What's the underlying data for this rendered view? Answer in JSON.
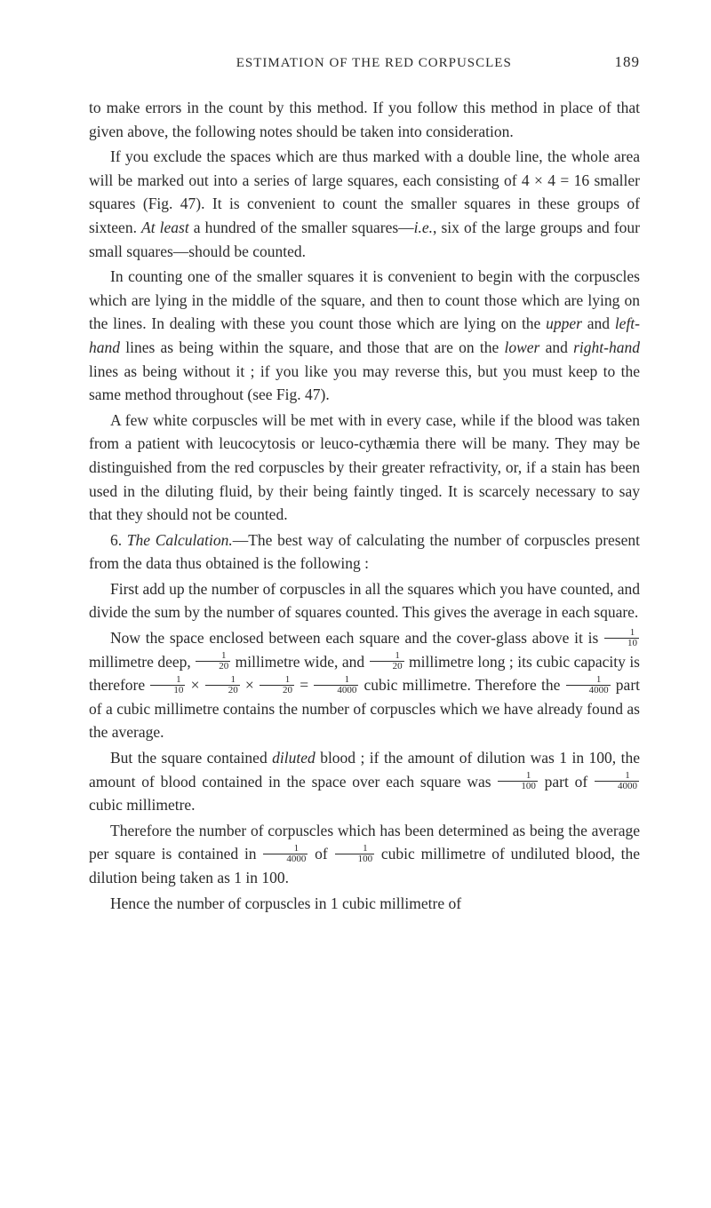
{
  "header": {
    "title": "ESTIMATION OF THE RED CORPUSCLES",
    "pageNumber": "189"
  },
  "paragraphs": {
    "p1": "to make errors in the count by this method. If you follow this method in place of that given above, the following notes should be taken into consideration.",
    "p2_a": "If you exclude the spaces which are thus marked with a double line, the whole area will be marked out into a series of large squares, each consisting of 4 × 4 = 16 smaller squares (Fig. 47). It is convenient to count the smaller squares in these groups of sixteen. ",
    "p2_b": "At least",
    "p2_c": " a hundred of the smaller squares—",
    "p2_d": "i.e.",
    "p2_e": ", six of the large groups and four small squares—should be counted.",
    "p3_a": "In counting one of the smaller squares it is convenient to begin with the corpuscles which are lying in the middle of the square, and then to count those which are lying on the lines. In dealing with these you count those which are lying on the ",
    "p3_b": "upper",
    "p3_c": " and ",
    "p3_d": "left-hand",
    "p3_e": " lines as being within the square, and those that are on the ",
    "p3_f": "lower",
    "p3_g": " and ",
    "p3_h": "right-hand",
    "p3_i": " lines as being without it ; if you like you may reverse this, but you must keep to the same method throughout (see Fig. 47).",
    "p4": "A few white corpuscles will be met with in every case, while if the blood was taken from a patient with leucocytosis or leuco-cythæmia there will be many. They may be distinguished from the red corpuscles by their greater refractivity, or, if a stain has been used in the diluting fluid, by their being faintly tinged. It is scarcely necessary to say that they should not be counted.",
    "p5_a": "6. ",
    "p5_b": "The Calculation.",
    "p5_c": "—The best way of calculating the number of corpuscles present from the data thus obtained is the following :",
    "p6": "First add up the number of corpuscles in all the squares which you have counted, and divide the sum by the number of squares counted. This gives the average in each square.",
    "p7_a": "Now the space enclosed between each square and the cover-glass above it is ",
    "p7_b": " millimetre deep, ",
    "p7_c": " millimetre wide, and ",
    "p7_d": " millimetre long ; its cubic capacity is therefore ",
    "p7_e": " cubic millimetre. Therefore the ",
    "p7_f": " part of a cubic millimetre contains the number of corpuscles which we have already found as the average.",
    "p8_a": "But the square contained ",
    "p8_b": "diluted",
    "p8_c": " blood ; if the amount of dilution was 1 in 100, the amount of blood contained in the space over each square was ",
    "p8_d": " part of ",
    "p8_e": " cubic millimetre.",
    "p9_a": "Therefore the number of corpuscles which has been determined as being the average per square is contained in ",
    "p9_b": " of ",
    "p9_c": " cubic millimetre of undiluted blood, the dilution being taken as 1 in 100.",
    "p10": "Hence the number of corpuscles in 1 cubic millimetre of",
    "frac_1_10_n": "1",
    "frac_1_10_d": "10",
    "frac_1_20_n": "1",
    "frac_1_20_d": "20",
    "frac_1_4000_n": "1",
    "frac_1_4000_d": "4000",
    "frac_1_100_n": "1",
    "frac_1_100_d": "100",
    "times": " × ",
    "equals": " = "
  }
}
